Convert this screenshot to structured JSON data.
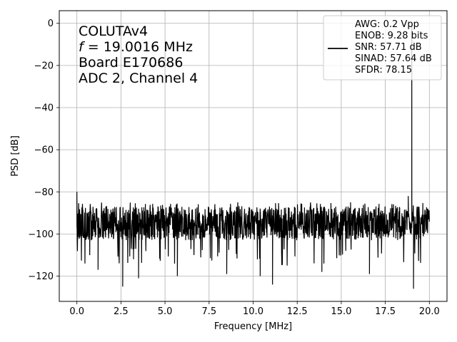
{
  "chart_data": {
    "type": "line",
    "xlabel": "Frequency [MHz]",
    "ylabel": "PSD [dB]",
    "xlim": [
      -1.0,
      21.0
    ],
    "ylim": [
      -132,
      6
    ],
    "xticks": [
      0.0,
      2.5,
      5.0,
      7.5,
      10.0,
      12.5,
      15.0,
      17.5,
      20.0
    ],
    "xtick_labels": [
      "0.0",
      "2.5",
      "5.0",
      "7.5",
      "10.0",
      "12.5",
      "15.0",
      "17.5",
      "20.0"
    ],
    "yticks": [
      0,
      -20,
      -40,
      -60,
      -80,
      -100,
      -120
    ],
    "ytick_labels": [
      "0",
      "−20",
      "−40",
      "−60",
      "−80",
      "−100",
      "−120"
    ],
    "grid": true,
    "annotation": {
      "line1": "COLUTAv4",
      "line2_italic": "f",
      "line2_rest": " = 19.0016 MHz",
      "line3": "Board E170686",
      "line4": "ADC 2, Channel 4"
    },
    "legend": {
      "position": "top-right",
      "lines": [
        "AWG: 0.2 Vpp",
        "ENOB: 9.28 bits",
        "SNR: 57.71 dB",
        "SINAD: 57.64 dB",
        "SFDR: 78.15"
      ]
    },
    "series": [
      {
        "color": "#000000",
        "noise_floor_db": -95,
        "noise_low_db": -103,
        "noise_high_db": -87,
        "peak": {
          "x": 19.0016,
          "y": 0
        },
        "spikes": [
          {
            "x": 0.0,
            "y": -80
          },
          {
            "x": 1.2,
            "y": -117
          },
          {
            "x": 2.6,
            "y": -125
          },
          {
            "x": 3.5,
            "y": -121
          },
          {
            "x": 5.7,
            "y": -120
          },
          {
            "x": 8.5,
            "y": -119
          },
          {
            "x": 10.4,
            "y": -120
          },
          {
            "x": 11.1,
            "y": -124
          },
          {
            "x": 13.9,
            "y": -118
          },
          {
            "x": 16.6,
            "y": -119
          },
          {
            "x": 18.8,
            "y": -82
          },
          {
            "x": 19.1,
            "y": -126
          }
        ]
      }
    ]
  }
}
